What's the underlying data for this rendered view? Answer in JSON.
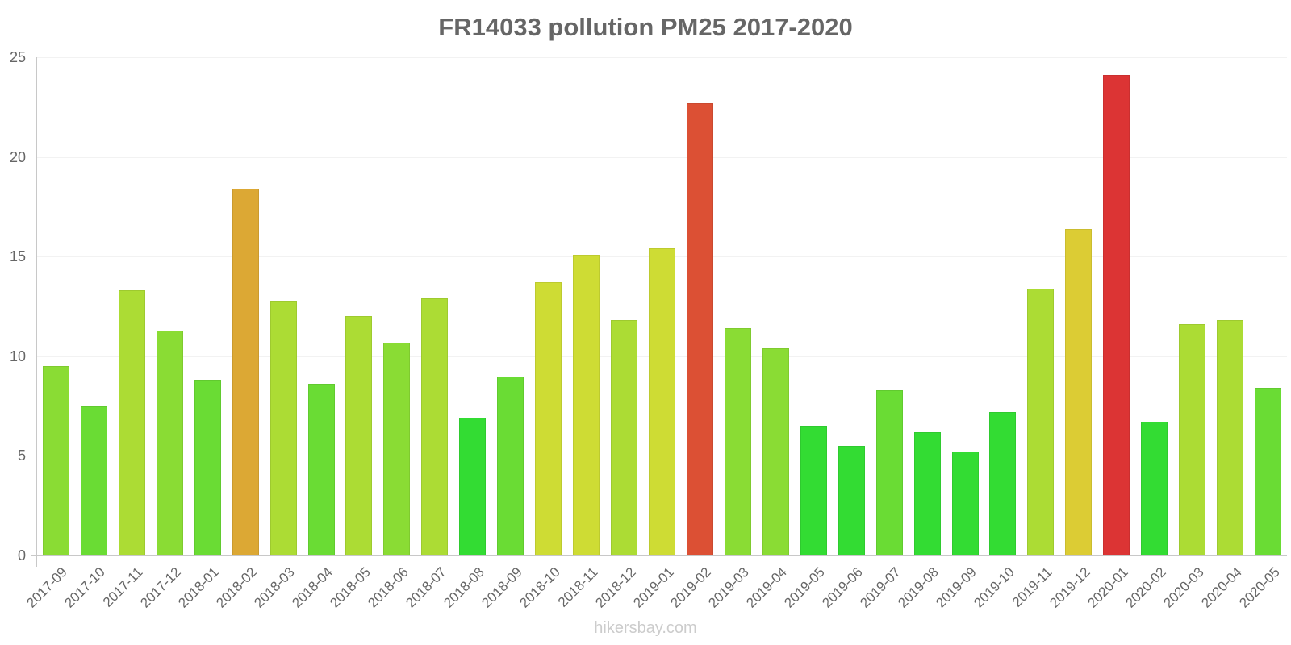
{
  "chart_data": {
    "type": "bar",
    "title": "FR14033 pollution PM25 2017-2020",
    "xlabel": "",
    "ylabel": "",
    "ylim": [
      0,
      25
    ],
    "yticks": [
      0,
      5,
      10,
      15,
      20,
      25
    ],
    "grid": true,
    "legend": null,
    "categories": [
      "2017-09",
      "2017-10",
      "2017-11",
      "2017-12",
      "2018-01",
      "2018-02",
      "2018-03",
      "2018-04",
      "2018-05",
      "2018-06",
      "2018-07",
      "2018-08",
      "2018-09",
      "2018-10",
      "2018-11",
      "2018-12",
      "2019-01",
      "2019-02",
      "2019-03",
      "2019-04",
      "2019-05",
      "2019-06",
      "2019-07",
      "2019-08",
      "2019-09",
      "2019-10",
      "2019-11",
      "2019-12",
      "2020-01",
      "2020-02",
      "2020-03",
      "2020-04",
      "2020-05"
    ],
    "values": [
      9.5,
      7.5,
      13.3,
      11.3,
      8.8,
      18.4,
      12.8,
      8.6,
      12.0,
      10.7,
      12.9,
      6.9,
      9.0,
      13.7,
      15.1,
      11.8,
      15.4,
      22.7,
      11.4,
      10.4,
      6.5,
      5.5,
      8.3,
      6.2,
      5.2,
      7.2,
      13.4,
      16.4,
      24.1,
      6.7,
      11.6,
      11.8,
      8.4
    ],
    "colors": [
      "#8ADC34",
      "#6ADC34",
      "#ACDC34",
      "#8ADC34",
      "#6ADC34",
      "#DCA834",
      "#ACDC34",
      "#6ADC34",
      "#ACDC34",
      "#8ADC34",
      "#ACDC34",
      "#33DC33",
      "#6ADC34",
      "#CEDC34",
      "#CEDC34",
      "#ACDC34",
      "#CEDC34",
      "#DC5034",
      "#8ADC34",
      "#8ADC34",
      "#33DC33",
      "#33DC33",
      "#6ADC34",
      "#33DC33",
      "#33DC33",
      "#33DC33",
      "#ACDC34",
      "#DCCC34",
      "#DC3434",
      "#33DC33",
      "#ACDC34",
      "#ACDC34",
      "#6ADC34"
    ]
  },
  "footer": {
    "watermark": "hikersbay.com"
  }
}
